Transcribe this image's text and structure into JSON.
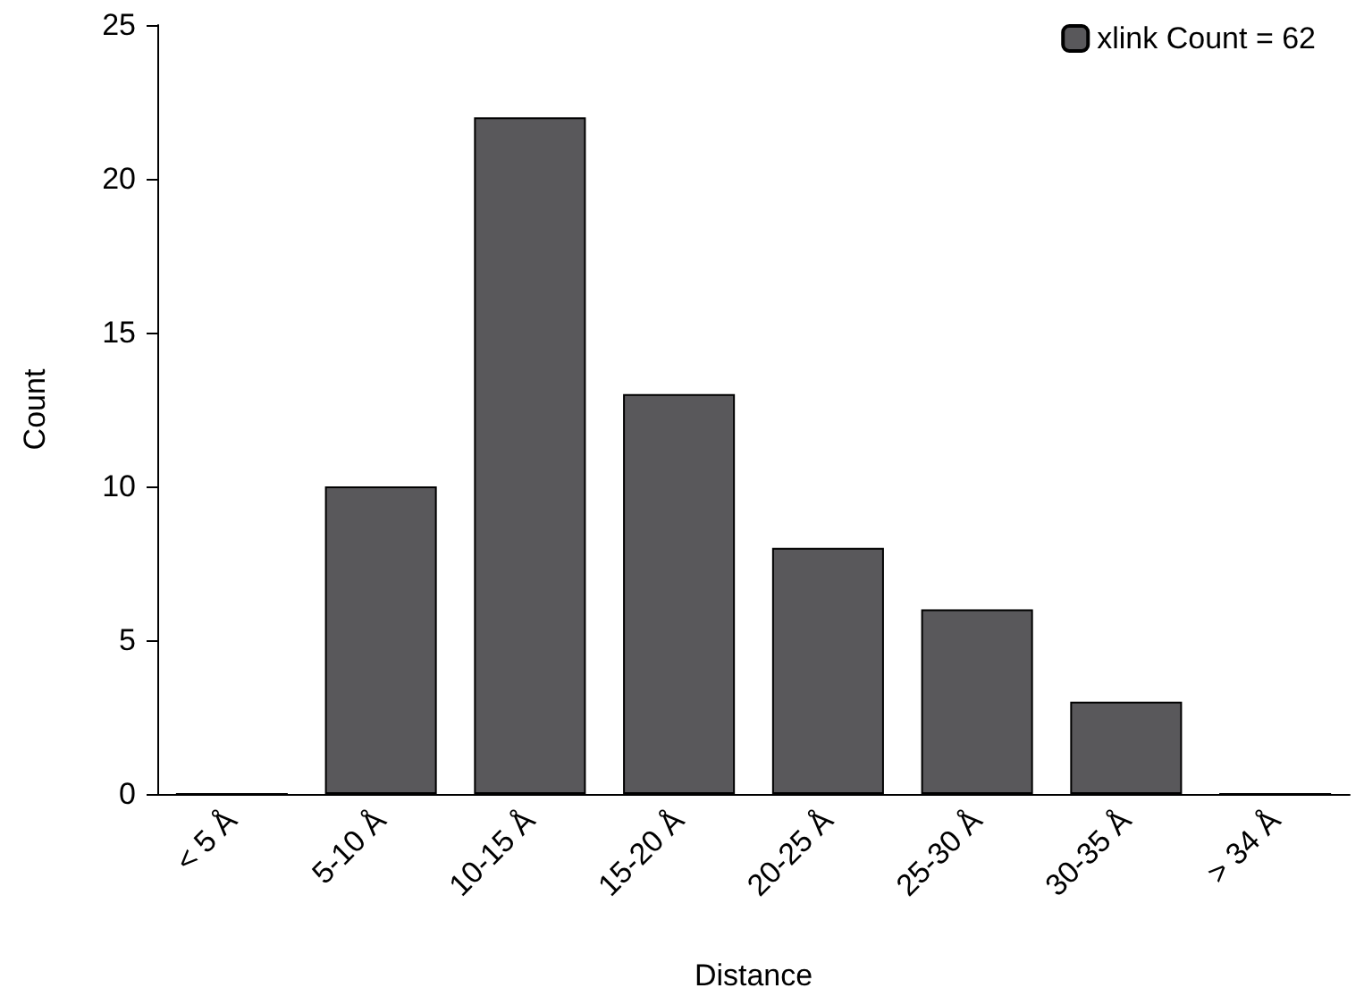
{
  "chart_data": {
    "type": "bar",
    "xlabel": "Distance",
    "ylabel": "Count",
    "categories": [
      "< 5 Å",
      "5-10 Å",
      "10-15 Å",
      "15-20 Å",
      "20-25 Å",
      "25-30 Å",
      "30-35 Å",
      "> 34 Å"
    ],
    "series": [
      {
        "name": "xlink Count = 62",
        "color": "#59585b",
        "values": [
          0,
          10,
          22,
          13,
          8,
          6,
          3,
          0
        ]
      }
    ],
    "ylim": [
      0,
      25
    ],
    "yticks": [
      0,
      5,
      10,
      15,
      20,
      25
    ],
    "grid": false,
    "legend": "top right"
  }
}
